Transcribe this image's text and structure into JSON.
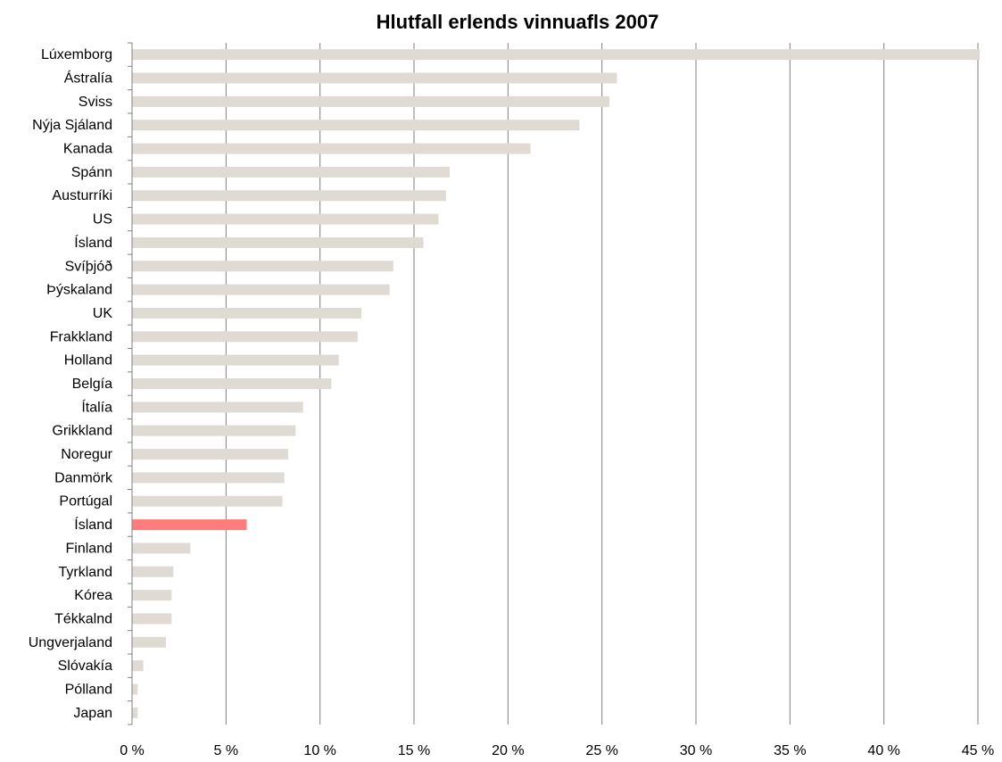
{
  "chart_data": {
    "type": "bar",
    "orientation": "horizontal",
    "title": "Hlutfall erlends vinnuafls 2007",
    "xlabel": "",
    "ylabel": "",
    "categories": [
      "Lúxemborg",
      "Ástralía",
      "Sviss",
      "Nýja Sjáland",
      "Kanada",
      "Spánn",
      "Austurríki",
      "US",
      "Ísland",
      "Svíþjóð",
      "Þýskaland",
      "UK",
      "Frakkland",
      "Holland",
      "Belgía",
      "Ítalía",
      "Grikkland",
      "Noregur",
      "Danmörk",
      "Portúgal",
      "Ísland",
      "Finland",
      "Tyrkland",
      "Kórea",
      "Tékkalnd",
      "Ungverjaland",
      "Slóvakía",
      "Pólland",
      "Japan"
    ],
    "values": [
      45.1,
      25.8,
      25.4,
      23.8,
      21.2,
      16.9,
      16.7,
      16.3,
      15.5,
      13.9,
      13.7,
      12.2,
      12.0,
      11.0,
      10.6,
      9.1,
      8.7,
      8.3,
      8.1,
      8.0,
      6.1,
      3.1,
      2.2,
      2.1,
      2.1,
      1.8,
      0.6,
      0.3,
      0.3
    ],
    "highlight_index": 20,
    "xlim": [
      0,
      45
    ],
    "xticks": [
      0,
      5,
      10,
      15,
      20,
      25,
      30,
      35,
      40,
      45
    ],
    "xtick_labels": [
      "0 %",
      "5 %",
      "10 %",
      "15 %",
      "20 %",
      "25 %",
      "30 %",
      "35 %",
      "40 %",
      "45 %"
    ],
    "grid": "vertical",
    "legend": "none",
    "colors": {
      "bar": "#e0dad4",
      "highlight": "#ff7c7c",
      "grid": "#808080",
      "axis": "#808080"
    }
  }
}
